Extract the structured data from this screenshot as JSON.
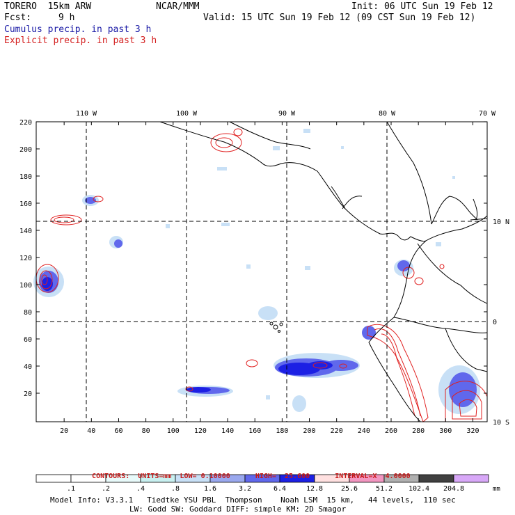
{
  "header": {
    "model": "TORERO  15km ARW",
    "org": "NCAR/MMM",
    "init": "Init: 06 UTC Sun 19 Feb 12",
    "fcst_label": "Fcst:",
    "fcst_hours": "9 h",
    "valid": "Valid: 15 UTC Sun 19 Feb 12 (09 CST Sun 19 Feb 12)",
    "field1": "Cumulus precip. in past 3 h",
    "field2": "Explicit precip. in past 3 h"
  },
  "colors": {
    "cumulus_text": "#1a1aa6",
    "explicit_text": "#d42020",
    "contour": "#e02020",
    "coast": "#000000"
  },
  "map": {
    "lon_labels": [
      "110 W",
      "100 W",
      "90 W",
      "80 W",
      "70 W"
    ],
    "lat_labels": [
      "10 N",
      "0",
      "10 S"
    ],
    "x_ticks": [
      "20",
      "40",
      "60",
      "80",
      "100",
      "120",
      "140",
      "160",
      "180",
      "200",
      "220",
      "240",
      "260",
      "280",
      "300",
      "320"
    ],
    "y_ticks": [
      "220",
      "200",
      "180",
      "160",
      "140",
      "120",
      "100",
      "80",
      "60",
      "40",
      "20"
    ]
  },
  "contours_info": {
    "label": "CONTOURS:",
    "units": "UNITS=mm",
    "low": "LOW= 0.10000",
    "high": "HIGH=  25.600",
    "interval": "INTERVAL=X  4.0000"
  },
  "colorbar": {
    "unit": "mm",
    "labels": [
      ".1",
      ".2",
      ".4",
      ".8",
      "1.6",
      "3.2",
      "6.4",
      "12.8",
      "25.6",
      "51.2",
      "102.4",
      "204.8"
    ],
    "colors": [
      "#ffffff",
      "#ffffff",
      "#e8fafa",
      "#c8f0f0",
      "#c8e0f6",
      "#9aa8ee",
      "#6068ec",
      "#1c20e4",
      "#ffe0e0",
      "#f296c0",
      "#b0b0b0",
      "#404040",
      "#d8a8f8"
    ]
  },
  "footer": {
    "line1": "Model Info: V3.3.1   Tiedtke YSU PBL  Thompson    Noah LSM  15 km,   44 levels,  110 sec",
    "line2": "LW: Godd SW: Goddard DIFF: simple KM: 2D Smagor"
  }
}
